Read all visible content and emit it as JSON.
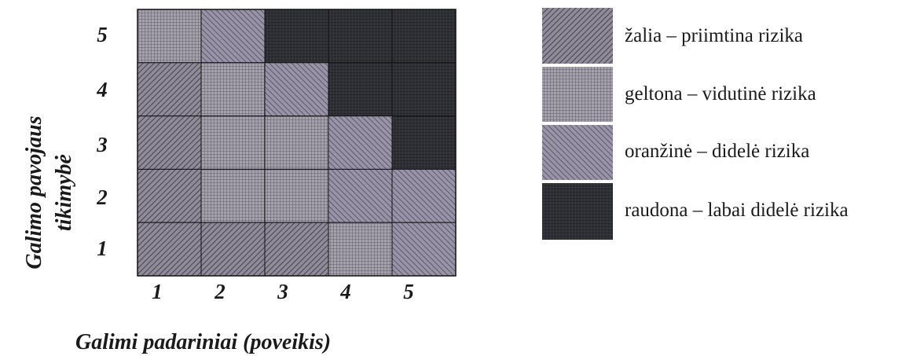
{
  "chart_data": {
    "type": "heatmap",
    "title": "",
    "xlabel": "Galimi padariniai (poveikis)",
    "ylabel": [
      "Galimo pavojaus",
      "tikimybė"
    ],
    "x_ticks": [
      "1",
      "2",
      "3",
      "4",
      "5"
    ],
    "y_ticks": [
      "1",
      "2",
      "3",
      "4",
      "5"
    ],
    "grid": true,
    "legend_position": "right",
    "categories": [
      {
        "key": "green",
        "label": "žalia – priimtina rizika",
        "color": "#6e6a78",
        "pattern": "diag-fine"
      },
      {
        "key": "yellow",
        "label": "geltona – vidutinė rizika",
        "color": "#8c8894",
        "pattern": "crosshatch"
      },
      {
        "key": "orange",
        "label": "oranžinė  – didelė  rizika",
        "color": "#7d7a8c",
        "pattern": "diag-reverse"
      },
      {
        "key": "red",
        "label": "raudona – labai didelė rizika",
        "color": "#2e2e34",
        "pattern": "dark"
      }
    ],
    "cells": [
      {
        "likelihood": 5,
        "impact": 1,
        "category": "yellow"
      },
      {
        "likelihood": 5,
        "impact": 2,
        "category": "orange"
      },
      {
        "likelihood": 5,
        "impact": 3,
        "category": "red"
      },
      {
        "likelihood": 5,
        "impact": 4,
        "category": "red"
      },
      {
        "likelihood": 5,
        "impact": 5,
        "category": "red"
      },
      {
        "likelihood": 4,
        "impact": 1,
        "category": "green"
      },
      {
        "likelihood": 4,
        "impact": 2,
        "category": "yellow"
      },
      {
        "likelihood": 4,
        "impact": 3,
        "category": "orange"
      },
      {
        "likelihood": 4,
        "impact": 4,
        "category": "red"
      },
      {
        "likelihood": 4,
        "impact": 5,
        "category": "red"
      },
      {
        "likelihood": 3,
        "impact": 1,
        "category": "green"
      },
      {
        "likelihood": 3,
        "impact": 2,
        "category": "yellow"
      },
      {
        "likelihood": 3,
        "impact": 3,
        "category": "yellow"
      },
      {
        "likelihood": 3,
        "impact": 4,
        "category": "orange"
      },
      {
        "likelihood": 3,
        "impact": 5,
        "category": "red"
      },
      {
        "likelihood": 2,
        "impact": 1,
        "category": "green"
      },
      {
        "likelihood": 2,
        "impact": 2,
        "category": "yellow"
      },
      {
        "likelihood": 2,
        "impact": 3,
        "category": "yellow"
      },
      {
        "likelihood": 2,
        "impact": 4,
        "category": "orange"
      },
      {
        "likelihood": 2,
        "impact": 5,
        "category": "orange"
      },
      {
        "likelihood": 1,
        "impact": 1,
        "category": "green"
      },
      {
        "likelihood": 1,
        "impact": 2,
        "category": "green"
      },
      {
        "likelihood": 1,
        "impact": 3,
        "category": "green"
      },
      {
        "likelihood": 1,
        "impact": 4,
        "category": "yellow"
      },
      {
        "likelihood": 1,
        "impact": 5,
        "category": "orange"
      }
    ]
  }
}
